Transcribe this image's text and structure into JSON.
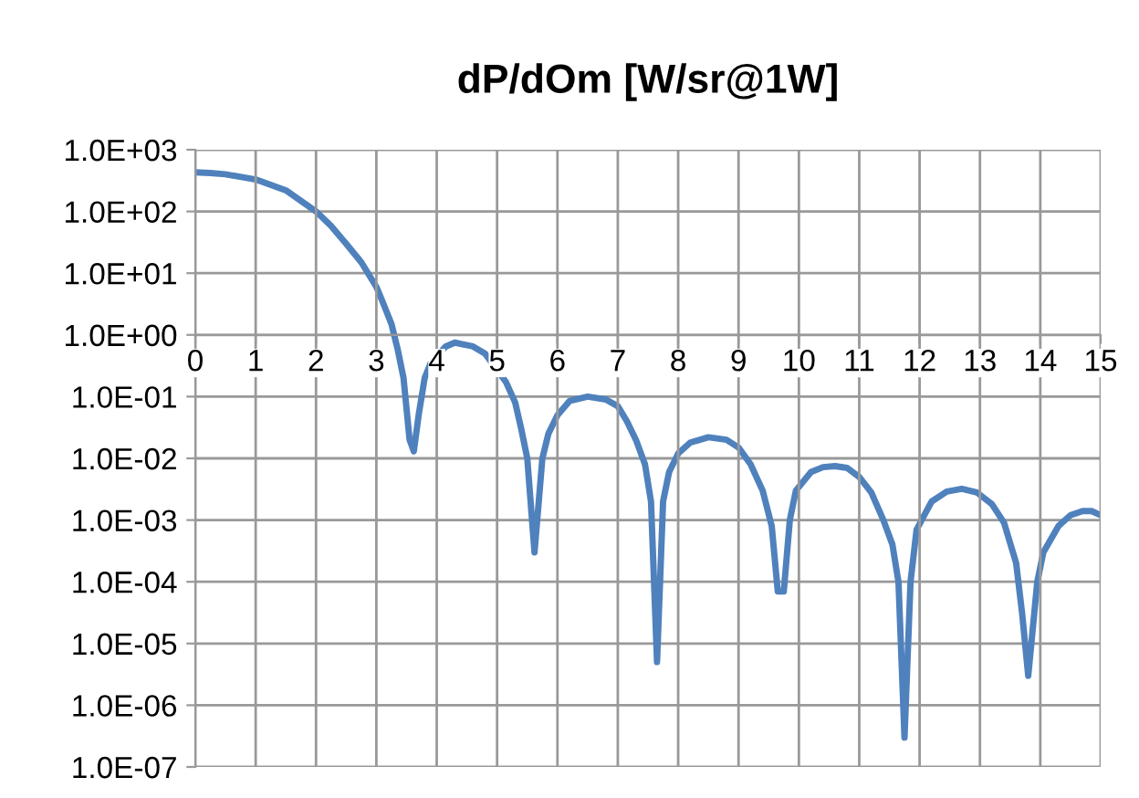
{
  "chart_data": {
    "type": "line",
    "title": "dP/dOm [W/sr@1W]",
    "series": [
      {
        "color": "#4f81bd",
        "x": [
          0,
          0.25,
          0.5,
          1,
          1.5,
          2,
          2.25,
          2.5,
          2.75,
          3,
          3.1,
          3.25,
          3.35,
          3.45,
          3.55,
          3.62,
          3.7,
          3.8,
          3.9,
          4.15,
          4.3,
          4.6,
          4.8,
          5.15,
          5.3,
          5.4,
          5.5,
          5.62,
          5.75,
          5.85,
          6,
          6.2,
          6.5,
          6.8,
          7,
          7.15,
          7.3,
          7.45,
          7.55,
          7.65,
          7.75,
          7.85,
          8,
          8.2,
          8.5,
          8.8,
          9,
          9.2,
          9.4,
          9.55,
          9.65,
          9.75,
          9.85,
          9.95,
          10.2,
          10.4,
          10.6,
          10.8,
          11,
          11.2,
          11.4,
          11.55,
          11.65,
          11.75,
          11.85,
          11.95,
          12.2,
          12.45,
          12.7,
          12.95,
          13.2,
          13.4,
          13.6,
          13.7,
          13.8,
          13.95,
          14.05,
          14.3,
          14.5,
          14.7,
          14.85,
          15
        ],
        "values": [
          430,
          420,
          400,
          330,
          220,
          100,
          58,
          30,
          15,
          6,
          3.5,
          1.5,
          0.6,
          0.2,
          0.02,
          0.013,
          0.05,
          0.2,
          0.35,
          0.65,
          0.75,
          0.65,
          0.5,
          0.17,
          0.08,
          0.03,
          0.01,
          0.0003,
          0.01,
          0.025,
          0.05,
          0.085,
          0.1,
          0.09,
          0.07,
          0.04,
          0.02,
          0.008,
          0.002,
          5e-06,
          0.002,
          0.006,
          0.012,
          0.018,
          0.022,
          0.02,
          0.015,
          0.008,
          0.003,
          0.0008,
          7e-05,
          7e-05,
          0.001,
          0.003,
          0.006,
          0.0072,
          0.0075,
          0.007,
          0.005,
          0.0028,
          0.001,
          0.0004,
          0.0001,
          3e-07,
          0.0001,
          0.0007,
          0.002,
          0.0029,
          0.0032,
          0.0028,
          0.0018,
          0.0009,
          0.0002,
          3e-05,
          3e-06,
          0.0001,
          0.0003,
          0.0008,
          0.0012,
          0.0014,
          0.0014,
          0.0012
        ]
      }
    ],
    "log": "y",
    "grid": true,
    "marker": "none",
    "line_style": "solid",
    "xlim": [
      0,
      15
    ],
    "xticks": [
      0,
      1,
      2,
      3,
      4,
      5,
      6,
      7,
      8,
      9,
      10,
      11,
      12,
      13,
      14,
      15
    ],
    "ylim": [
      1e-07,
      1000
    ],
    "yticks": [
      {
        "value": 1e-07,
        "label": "1.0E-07"
      },
      {
        "value": 1e-06,
        "label": "1.0E-06"
      },
      {
        "value": 1e-05,
        "label": "1.0E-05"
      },
      {
        "value": 0.0001,
        "label": "1.0E-04"
      },
      {
        "value": 0.001,
        "label": "1.0E-03"
      },
      {
        "value": 0.01,
        "label": "1.0E-02"
      },
      {
        "value": 0.1,
        "label": "1.0E-01"
      },
      {
        "value": 1,
        "label": "1.0E+00"
      },
      {
        "value": 10,
        "label": "1.0E+01"
      },
      {
        "value": 100,
        "label": "1.0E+02"
      },
      {
        "value": 1000,
        "label": "1.0E+03"
      }
    ]
  }
}
